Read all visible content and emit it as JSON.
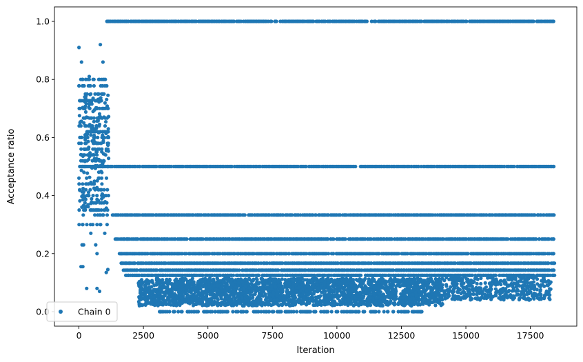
{
  "chart_data": {
    "type": "scatter",
    "xlabel": "Iteration",
    "ylabel": "Acceptance ratio",
    "xlim": [
      -950,
      19300
    ],
    "ylim": [
      -0.05,
      1.05
    ],
    "xticks": [
      0,
      2500,
      5000,
      7500,
      10000,
      12500,
      15000,
      17500
    ],
    "xtick_labels": [
      "0",
      "2500",
      "5000",
      "7500",
      "10000",
      "12500",
      "15000",
      "17500"
    ],
    "yticks": [
      0.0,
      0.2,
      0.4,
      0.6,
      0.8,
      1.0
    ],
    "ytick_labels": [
      "0.0",
      "0.2",
      "0.4",
      "0.6",
      "0.8",
      "1.0"
    ],
    "grid": false,
    "legend": {
      "location": "lower-left",
      "entries": [
        "Chain 0"
      ]
    },
    "marker_color": "#1f77b4",
    "series": [
      {
        "name": "Chain 0",
        "segments": [
          {
            "x_start": 0,
            "x_end": 1150,
            "y_range": [
              0.08,
              0.92
            ],
            "description": "burn-in cloud, dense between 0.35 and 0.75"
          },
          {
            "x_start": 1050,
            "x_end": 18400,
            "y": 1.0
          },
          {
            "x_start": 0,
            "x_end": 18400,
            "y": 0.5
          },
          {
            "x_start": 1300,
            "x_end": 18400,
            "y": 0.333
          },
          {
            "x_start": 1400,
            "x_end": 18400,
            "y": 0.25
          },
          {
            "x_start": 1500,
            "x_end": 18400,
            "y": 0.2
          },
          {
            "x_start": 1600,
            "x_end": 18400,
            "y": 0.167
          },
          {
            "x_start": 1700,
            "x_end": 18400,
            "y": 0.143
          },
          {
            "x_start": 1800,
            "x_end": 18400,
            "y": 0.125
          },
          {
            "x_start": 2300,
            "x_end": 14100,
            "y_range": [
              0.0,
              0.12
            ],
            "description": "dense band of low acceptance ratios"
          },
          {
            "x_start": 14100,
            "x_end": 18300,
            "y_range": [
              0.03,
              0.12
            ],
            "description": "sparser low band"
          }
        ]
      }
    ]
  }
}
